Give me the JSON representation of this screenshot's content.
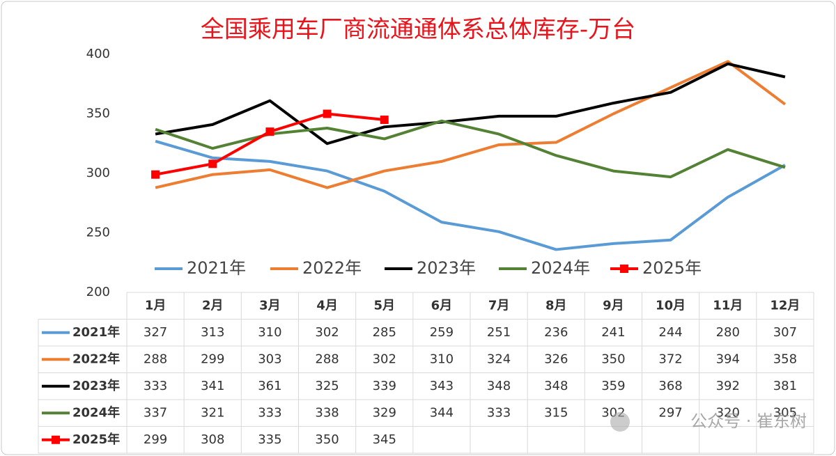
{
  "chart_data": {
    "type": "line",
    "title": "全国乘用车厂商流通通体系总体库存-万台",
    "categories": [
      "1月",
      "2月",
      "3月",
      "4月",
      "5月",
      "6月",
      "7月",
      "8月",
      "9月",
      "10月",
      "11月",
      "12月"
    ],
    "series": [
      {
        "name": "2021年",
        "color": "#5b9bd5",
        "values": [
          327,
          313,
          310,
          302,
          285,
          259,
          251,
          236,
          241,
          244,
          280,
          307
        ]
      },
      {
        "name": "2022年",
        "color": "#ed7d31",
        "values": [
          288,
          299,
          303,
          288,
          302,
          310,
          324,
          326,
          350,
          372,
          394,
          358
        ]
      },
      {
        "name": "2023年",
        "color": "#000000",
        "values": [
          333,
          341,
          361,
          325,
          339,
          343,
          348,
          348,
          359,
          368,
          392,
          381
        ]
      },
      {
        "name": "2024年",
        "color": "#548235",
        "values": [
          337,
          321,
          333,
          338,
          329,
          344,
          333,
          315,
          302,
          297,
          320,
          305
        ]
      },
      {
        "name": "2025年",
        "color": "#ff0000",
        "marker": "square",
        "values": [
          299,
          308,
          335,
          350,
          345,
          null,
          null,
          null,
          null,
          null,
          null,
          null
        ]
      }
    ],
    "ylim": [
      200,
      400
    ],
    "yticks": [
      200,
      250,
      300,
      350,
      400
    ],
    "grid": false,
    "legend": "bottom",
    "data_table": true,
    "watermark": "公众号 · 崔东树"
  }
}
